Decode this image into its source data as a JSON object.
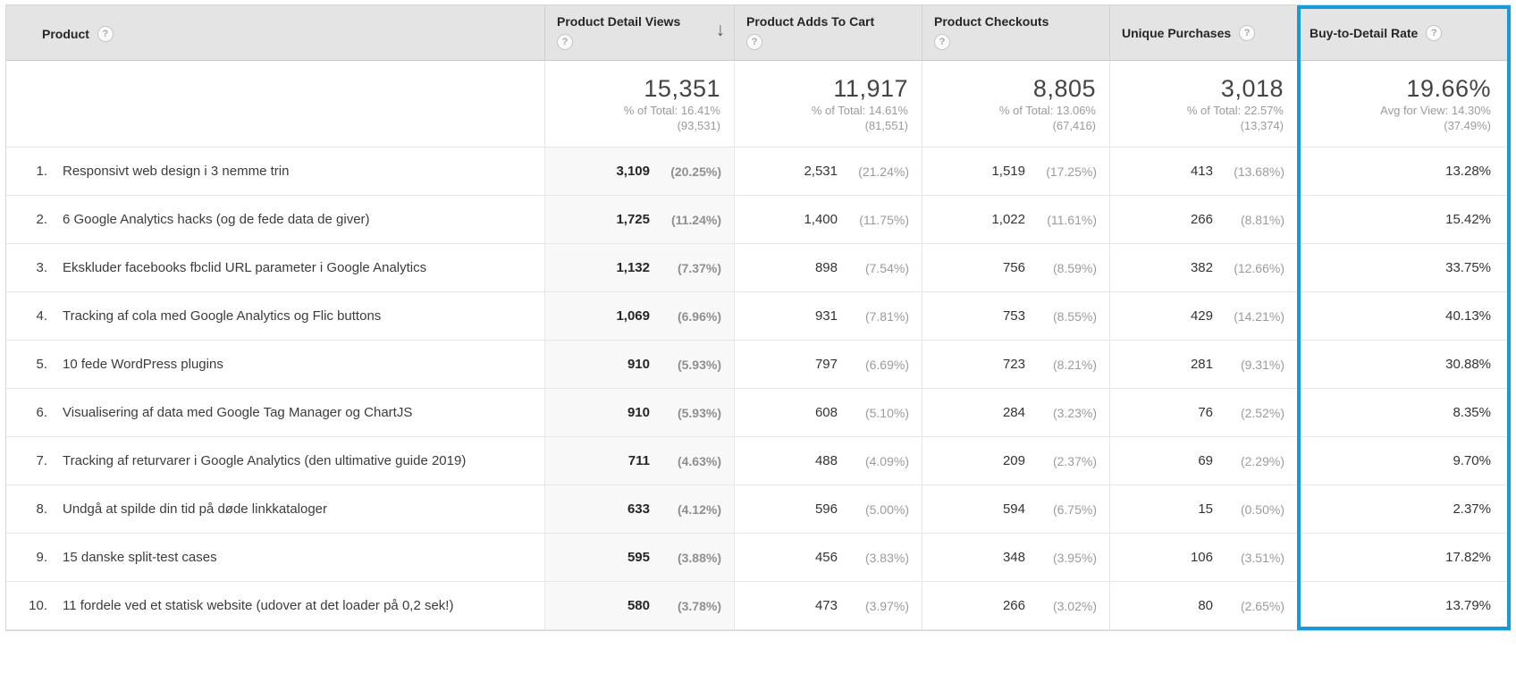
{
  "columns": {
    "product": {
      "label": "Product"
    },
    "detail_views": {
      "label": "Product Detail Views",
      "sort": "descending"
    },
    "adds_to_cart": {
      "label": "Product Adds To Cart"
    },
    "checkouts": {
      "label": "Product Checkouts"
    },
    "unique_purchases": {
      "label": "Unique Purchases"
    },
    "buy_to_detail": {
      "label": "Buy-to-Detail Rate",
      "highlighted": true
    }
  },
  "icons": {
    "help": "?",
    "sort_descending": "↓"
  },
  "summary": {
    "metrics": [
      {
        "value": "15,351",
        "pct_line": "% of Total: 16.41%",
        "paren_line": "(93,531)"
      },
      {
        "value": "11,917",
        "pct_line": "% of Total: 14.61%",
        "paren_line": "(81,551)"
      },
      {
        "value": "8,805",
        "pct_line": "% of Total: 13.06%",
        "paren_line": "(67,416)"
      },
      {
        "value": "3,018",
        "pct_line": "% of Total: 22.57%",
        "paren_line": "(13,374)"
      }
    ],
    "rate": {
      "value": "19.66%",
      "pct_line": "Avg for View: 14.30%",
      "paren_line": "(37.49%)"
    }
  },
  "rows": [
    {
      "rank": "1.",
      "product": "Responsivt web design i 3 nemme trin",
      "metrics": [
        {
          "value": "3,109",
          "pct": "(20.25%)"
        },
        {
          "value": "2,531",
          "pct": "(21.24%)"
        },
        {
          "value": "1,519",
          "pct": "(17.25%)"
        },
        {
          "value": "413",
          "pct": "(13.68%)"
        }
      ],
      "rate": "13.28%"
    },
    {
      "rank": "2.",
      "product": "6 Google Analytics hacks (og de fede data de giver)",
      "metrics": [
        {
          "value": "1,725",
          "pct": "(11.24%)"
        },
        {
          "value": "1,400",
          "pct": "(11.75%)"
        },
        {
          "value": "1,022",
          "pct": "(11.61%)"
        },
        {
          "value": "266",
          "pct": "(8.81%)"
        }
      ],
      "rate": "15.42%"
    },
    {
      "rank": "3.",
      "product": "Ekskluder facebooks fbclid URL parameter i Google Analytics",
      "metrics": [
        {
          "value": "1,132",
          "pct": "(7.37%)"
        },
        {
          "value": "898",
          "pct": "(7.54%)"
        },
        {
          "value": "756",
          "pct": "(8.59%)"
        },
        {
          "value": "382",
          "pct": "(12.66%)"
        }
      ],
      "rate": "33.75%"
    },
    {
      "rank": "4.",
      "product": "Tracking af cola med Google Analytics og Flic buttons",
      "metrics": [
        {
          "value": "1,069",
          "pct": "(6.96%)"
        },
        {
          "value": "931",
          "pct": "(7.81%)"
        },
        {
          "value": "753",
          "pct": "(8.55%)"
        },
        {
          "value": "429",
          "pct": "(14.21%)"
        }
      ],
      "rate": "40.13%"
    },
    {
      "rank": "5.",
      "product": "10 fede WordPress plugins",
      "metrics": [
        {
          "value": "910",
          "pct": "(5.93%)"
        },
        {
          "value": "797",
          "pct": "(6.69%)"
        },
        {
          "value": "723",
          "pct": "(8.21%)"
        },
        {
          "value": "281",
          "pct": "(9.31%)"
        }
      ],
      "rate": "30.88%"
    },
    {
      "rank": "6.",
      "product": "Visualisering af data med Google Tag Manager og ChartJS",
      "metrics": [
        {
          "value": "910",
          "pct": "(5.93%)"
        },
        {
          "value": "608",
          "pct": "(5.10%)"
        },
        {
          "value": "284",
          "pct": "(3.23%)"
        },
        {
          "value": "76",
          "pct": "(2.52%)"
        }
      ],
      "rate": "8.35%"
    },
    {
      "rank": "7.",
      "product": "Tracking af returvarer i Google Analytics (den ultimative guide 2019)",
      "metrics": [
        {
          "value": "711",
          "pct": "(4.63%)"
        },
        {
          "value": "488",
          "pct": "(4.09%)"
        },
        {
          "value": "209",
          "pct": "(2.37%)"
        },
        {
          "value": "69",
          "pct": "(2.29%)"
        }
      ],
      "rate": "9.70%"
    },
    {
      "rank": "8.",
      "product": "Undgå at spilde din tid på døde linkkataloger",
      "metrics": [
        {
          "value": "633",
          "pct": "(4.12%)"
        },
        {
          "value": "596",
          "pct": "(5.00%)"
        },
        {
          "value": "594",
          "pct": "(6.75%)"
        },
        {
          "value": "15",
          "pct": "(0.50%)"
        }
      ],
      "rate": "2.37%"
    },
    {
      "rank": "9.",
      "product": "15 danske split-test cases",
      "metrics": [
        {
          "value": "595",
          "pct": "(3.88%)"
        },
        {
          "value": "456",
          "pct": "(3.83%)"
        },
        {
          "value": "348",
          "pct": "(3.95%)"
        },
        {
          "value": "106",
          "pct": "(3.51%)"
        }
      ],
      "rate": "17.82%"
    },
    {
      "rank": "10.",
      "product": "11 fordele ved et statisk website (udover at det loader på 0,2 sek!)",
      "metrics": [
        {
          "value": "580",
          "pct": "(3.78%)"
        },
        {
          "value": "473",
          "pct": "(3.97%)"
        },
        {
          "value": "266",
          "pct": "(3.02%)"
        },
        {
          "value": "80",
          "pct": "(2.65%)"
        }
      ],
      "rate": "13.79%"
    }
  ],
  "colors": {
    "highlight_border": "#189ad6",
    "header_bg": "#e4e4e4",
    "sorted_column_bg": "#f8f8f8"
  }
}
